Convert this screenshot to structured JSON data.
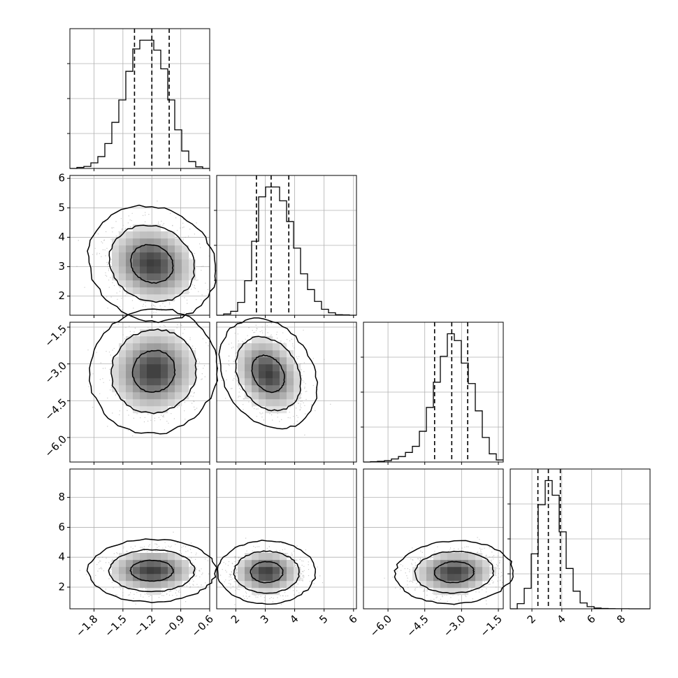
{
  "chart_data": {
    "type": "corner",
    "grid": true,
    "quantile_lines": [
      0.16,
      0.5,
      0.84
    ],
    "colors": {
      "axes": "#000000",
      "grid": "#b0b0b0",
      "points": "#9a9a9a",
      "contour": "#000000"
    },
    "params": [
      {
        "range": [
          -2.05,
          -0.6
        ],
        "ticks": [
          -1.8,
          -1.5,
          -1.2,
          -0.9,
          -0.6
        ],
        "tick_labels": [
          "−1.8",
          "−1.5",
          "−1.2",
          "−0.9",
          "−0.6"
        ],
        "quantiles": [
          -1.38,
          -1.2,
          -1.02
        ],
        "hist_edges": [
          -2.05,
          -1.9775,
          -1.905,
          -1.8325,
          -1.76,
          -1.6875,
          -1.615,
          -1.5425,
          -1.47,
          -1.3975,
          -1.325,
          -1.2525,
          -1.18,
          -1.1075,
          -1.035,
          -0.9625,
          -0.89,
          -0.8175,
          -0.745,
          -0.6725,
          -0.6
        ],
        "hist_counts": [
          0,
          0.8,
          1.6,
          4.5,
          9.5,
          20,
          37,
          55,
          78,
          96,
          103,
          103,
          95,
          80,
          55,
          31,
          14,
          5.5,
          1.3,
          0
        ]
      },
      {
        "range": [
          1.35,
          6.1
        ],
        "ticks": [
          2,
          3,
          4,
          5,
          6
        ],
        "tick_labels": [
          "2",
          "3",
          "4",
          "5",
          "6"
        ],
        "quantiles": [
          2.7,
          3.2,
          3.8
        ],
        "hist_edges": [
          1.35,
          1.5875,
          1.825,
          2.0625,
          2.3,
          2.5375,
          2.775,
          3.0125,
          3.25,
          3.4875,
          3.725,
          3.9625,
          4.2,
          4.4375,
          4.675,
          4.9125,
          5.15,
          5.3875,
          5.625,
          5.8625,
          6.1
        ],
        "hist_counts": [
          0,
          1.3,
          4,
          13,
          35,
          75,
          120,
          130,
          130,
          116,
          95,
          68,
          42,
          26,
          14,
          6,
          2.5,
          0.5,
          0.3,
          0
        ]
      },
      {
        "range": [
          -7.0,
          -1.3
        ],
        "ticks": [
          -6.0,
          -4.5,
          -3.0,
          -1.5
        ],
        "tick_labels": [
          "−6.0",
          "−4.5",
          "−3.0",
          "−1.5"
        ],
        "quantiles": [
          -4.1,
          -3.4,
          -2.75
        ],
        "hist_edges": [
          -7.0,
          -6.715,
          -6.43,
          -6.145,
          -5.86,
          -5.575,
          -5.29,
          -5.005,
          -4.72,
          -4.435,
          -4.15,
          -3.865,
          -3.58,
          -3.295,
          -3.01,
          -2.725,
          -2.44,
          -2.155,
          -1.87,
          -1.585,
          -1.3
        ],
        "hist_counts": [
          0,
          0.5,
          1,
          2,
          4.5,
          8,
          14,
          23,
          45,
          80,
          117,
          155,
          188,
          178,
          145,
          115,
          75,
          36,
          12,
          3
        ]
      },
      {
        "range": [
          0.55,
          9.9
        ],
        "ticks": [
          2,
          4,
          6,
          8
        ],
        "tick_labels": [
          "2",
          "4",
          "6",
          "8"
        ],
        "quantiles": [
          2.4,
          3.1,
          3.9
        ],
        "hist_edges": [
          0.55,
          1.0175,
          1.485,
          1.9525,
          2.42,
          2.8875,
          3.355,
          3.8225,
          4.29,
          4.7575,
          5.225,
          5.6925,
          6.16,
          6.6275,
          7.095,
          7.5625,
          8.03,
          8.4975,
          8.965,
          9.4325,
          9.9
        ],
        "hist_counts": [
          0,
          7,
          28,
          75,
          142,
          175,
          155,
          105,
          55,
          24,
          8,
          3,
          1,
          0.4,
          0.2,
          0.1,
          0.1,
          0,
          0,
          0
        ]
      }
    ],
    "correlations": {
      "1-0": {
        "mean": [
          -1.2,
          3.1
        ],
        "sd": [
          0.22,
          0.65
        ],
        "rho": -0.12
      },
      "2-0": {
        "mean": [
          -1.18,
          -3.3
        ],
        "sd": [
          0.22,
          0.85
        ],
        "rho": 0.05
      },
      "2-1": {
        "mean": [
          3.1,
          -3.4
        ],
        "sd": [
          0.55,
          0.75
        ],
        "rho": -0.25
      },
      "3-0": {
        "mean": [
          -1.2,
          3.1
        ],
        "sd": [
          0.22,
          0.7
        ],
        "rho": 0.0
      },
      "3-1": {
        "mean": [
          3.05,
          3.0
        ],
        "sd": [
          0.55,
          0.7
        ],
        "rho": 0.0
      },
      "3-2": {
        "mean": [
          -3.3,
          3.0
        ],
        "sd": [
          0.8,
          0.7
        ],
        "rho": 0.05
      }
    }
  }
}
